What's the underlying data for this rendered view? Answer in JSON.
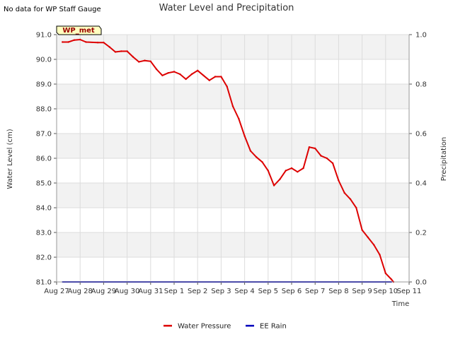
{
  "note": "No data for WP Staff Gauge",
  "site_label": "WP_met",
  "chart_data": {
    "type": "line",
    "title": "Water Level and Precipitation",
    "xlabel": "Time",
    "ylabel_left": "Water Level (cm)",
    "ylabel_right": "Precipitation",
    "x_ticks": [
      "Aug 27",
      "Aug 28",
      "Aug 29",
      "Aug 30",
      "Aug 31",
      "Sep 1",
      "Sep 2",
      "Sep 3",
      "Sep 4",
      "Sep 5",
      "Sep 6",
      "Sep 7",
      "Sep 8",
      "Sep 9",
      "Sep 10",
      "Sep 11"
    ],
    "x_range": [
      "2024-08-27",
      "2024-09-11"
    ],
    "ylim_left": [
      81.0,
      91.0
    ],
    "yticks_left": [
      "81.0",
      "82.0",
      "83.0",
      "84.0",
      "85.0",
      "86.0",
      "87.0",
      "88.0",
      "89.0",
      "90.0",
      "91.0"
    ],
    "ylim_right": [
      0.0,
      1.0
    ],
    "yticks_right": [
      "0.0",
      "0.2",
      "0.4",
      "0.6",
      "0.8",
      "1.0"
    ],
    "grid": true,
    "legend_position": "bottom-center",
    "series": [
      {
        "name": "Water Pressure",
        "axis": "left",
        "color": "#dd0000",
        "points": [
          [
            "2024-08-27 06:00",
            90.7
          ],
          [
            "2024-08-27 12:00",
            90.7
          ],
          [
            "2024-08-27 18:00",
            90.78
          ],
          [
            "2024-08-28 00:00",
            90.8
          ],
          [
            "2024-08-28 06:00",
            90.7
          ],
          [
            "2024-08-28 18:00",
            90.68
          ],
          [
            "2024-08-29 00:00",
            90.68
          ],
          [
            "2024-08-29 06:00",
            90.5
          ],
          [
            "2024-08-29 12:00",
            90.3
          ],
          [
            "2024-08-29 18:00",
            90.33
          ],
          [
            "2024-08-30 00:00",
            90.33
          ],
          [
            "2024-08-30 06:00",
            90.1
          ],
          [
            "2024-08-30 12:00",
            89.9
          ],
          [
            "2024-08-30 18:00",
            89.95
          ],
          [
            "2024-08-31 00:00",
            89.92
          ],
          [
            "2024-08-31 06:00",
            89.6
          ],
          [
            "2024-08-31 12:00",
            89.35
          ],
          [
            "2024-08-31 18:00",
            89.45
          ],
          [
            "2024-09-01 00:00",
            89.5
          ],
          [
            "2024-09-01 06:00",
            89.4
          ],
          [
            "2024-09-01 12:00",
            89.2
          ],
          [
            "2024-09-01 18:00",
            89.4
          ],
          [
            "2024-09-02 00:00",
            89.55
          ],
          [
            "2024-09-02 06:00",
            89.35
          ],
          [
            "2024-09-02 12:00",
            89.15
          ],
          [
            "2024-09-02 18:00",
            89.3
          ],
          [
            "2024-09-03 00:00",
            89.3
          ],
          [
            "2024-09-03 06:00",
            88.9
          ],
          [
            "2024-09-03 12:00",
            88.1
          ],
          [
            "2024-09-03 18:00",
            87.6
          ],
          [
            "2024-09-04 00:00",
            86.9
          ],
          [
            "2024-09-04 06:00",
            86.3
          ],
          [
            "2024-09-04 12:00",
            86.05
          ],
          [
            "2024-09-04 18:00",
            85.85
          ],
          [
            "2024-09-05 00:00",
            85.5
          ],
          [
            "2024-09-05 06:00",
            84.9
          ],
          [
            "2024-09-05 12:00",
            85.15
          ],
          [
            "2024-09-05 18:00",
            85.5
          ],
          [
            "2024-09-06 00:00",
            85.6
          ],
          [
            "2024-09-06 06:00",
            85.45
          ],
          [
            "2024-09-06 12:00",
            85.6
          ],
          [
            "2024-09-06 18:00",
            86.45
          ],
          [
            "2024-09-07 00:00",
            86.4
          ],
          [
            "2024-09-07 06:00",
            86.1
          ],
          [
            "2024-09-07 12:00",
            86.0
          ],
          [
            "2024-09-07 18:00",
            85.8
          ],
          [
            "2024-09-08 00:00",
            85.1
          ],
          [
            "2024-09-08 06:00",
            84.6
          ],
          [
            "2024-09-08 12:00",
            84.35
          ],
          [
            "2024-09-08 18:00",
            84.0
          ],
          [
            "2024-09-09 00:00",
            83.1
          ],
          [
            "2024-09-09 06:00",
            82.8
          ],
          [
            "2024-09-09 12:00",
            82.5
          ],
          [
            "2024-09-09 18:00",
            82.1
          ],
          [
            "2024-09-10 00:00",
            81.35
          ],
          [
            "2024-09-10 06:00",
            81.1
          ],
          [
            "2024-09-10 08:00",
            81.0
          ]
        ]
      },
      {
        "name": "EE Rain",
        "axis": "right",
        "color": "#0000bb",
        "points": [
          [
            "2024-08-27 06:00",
            0.0
          ],
          [
            "2024-09-10 06:00",
            0.0
          ]
        ]
      }
    ]
  }
}
